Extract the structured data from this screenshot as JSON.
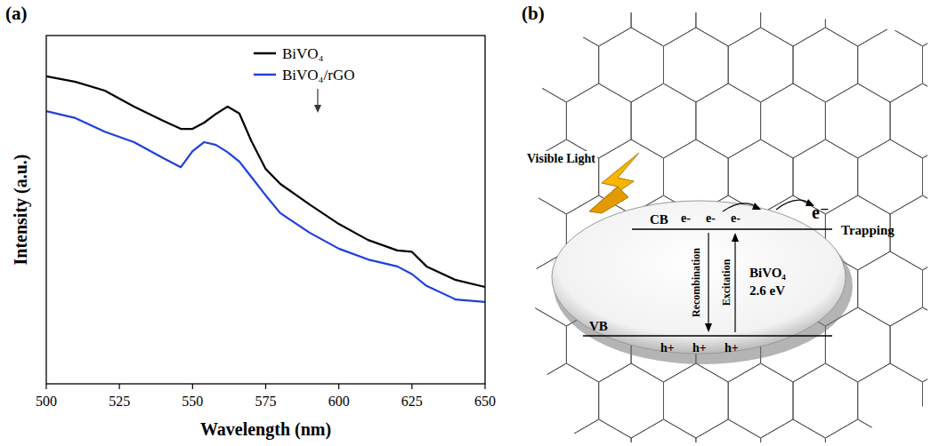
{
  "panel_labels": [
    "(a)",
    "(b)"
  ],
  "chart_data": {
    "type": "line",
    "x_label": "Wavelength (nm)",
    "y_label": "Intensity (a.u.)",
    "x": [
      500,
      510,
      520,
      530,
      540,
      546,
      550,
      554,
      558,
      562,
      566,
      570,
      575,
      580,
      590,
      600,
      610,
      620,
      625,
      630,
      640,
      650
    ],
    "series": [
      {
        "name": "BiVO₄",
        "color": "#000000",
        "values": [
          88.3,
          86.7,
          84.2,
          79.6,
          75.5,
          73.2,
          73.2,
          75,
          77.5,
          79.6,
          77.6,
          69.9,
          61.7,
          57.4,
          51.5,
          45.9,
          41.3,
          38.3,
          37.9,
          33.7,
          29.8,
          27.8
        ]
      },
      {
        "name": "BiVO₄/rGO",
        "color": "#1f3fdc",
        "values": [
          78.3,
          76.3,
          72.4,
          69.4,
          64.8,
          62.2,
          66.8,
          69.4,
          68.6,
          66.5,
          63.8,
          59.5,
          54.1,
          49,
          43.4,
          38.8,
          35.7,
          33.7,
          31.5,
          28.1,
          24.2,
          23.5
        ]
      }
    ],
    "xlim": [
      500,
      650
    ],
    "xticks": [
      500,
      525,
      550,
      575,
      600,
      625,
      650
    ],
    "ylim": [
      0,
      100
    ],
    "tick_labels": "x",
    "legend": "top",
    "grid": false
  },
  "diagram": {
    "light_label": "Visible Light",
    "cb_label": "CB",
    "vb_label": "VB",
    "electrons": [
      "e-",
      "e-",
      "e-"
    ],
    "holes": [
      "h+",
      "h+",
      "h+"
    ],
    "trapped_electron": "e⁻",
    "trapping_label": "Trapping",
    "recombination_label": "Recombination",
    "excitation_label": "Excitation",
    "material": "BiVO₄",
    "band_gap": "2.6 eV"
  }
}
